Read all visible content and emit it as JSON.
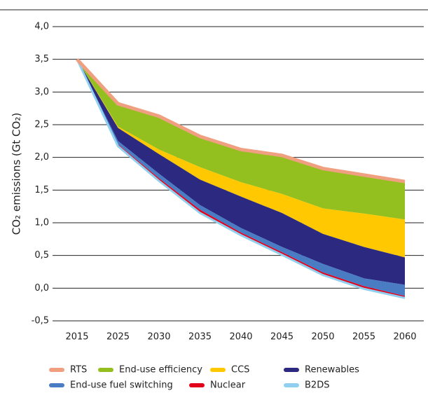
{
  "chart_data": {
    "type": "wedge",
    "y_label": "CO₂ emissions (Gt CO₂)",
    "categories": [
      "2015",
      "2025",
      "2030",
      "2035",
      "2040",
      "2045",
      "2050",
      "2055",
      "2060"
    ],
    "ylim": [
      -0.5,
      4.0
    ],
    "yticks": [
      {
        "value": -0.5,
        "label": "-0,5"
      },
      {
        "value": 0,
        "label": "0,0"
      },
      {
        "value": 0.5,
        "label": "0,5"
      },
      {
        "value": 1.0,
        "label": "1,0"
      },
      {
        "value": 1.5,
        "label": "1,5"
      },
      {
        "value": 2.0,
        "label": "2,0"
      },
      {
        "value": 2.5,
        "label": "2,5"
      },
      {
        "value": 3.0,
        "label": "3,0"
      },
      {
        "value": 3.5,
        "label": "3,5"
      },
      {
        "value": 4.0,
        "label": "4,0"
      }
    ],
    "grid": true,
    "baseline": {
      "name": "RTS",
      "color": "#f0a080",
      "values": [
        3.5,
        2.82,
        2.63,
        2.32,
        2.12,
        2.03,
        1.83,
        1.73,
        1.63
      ]
    },
    "series": [
      {
        "name": "End-use efficiency",
        "color": "#93c01f",
        "values": [
          0,
          0.35,
          0.51,
          0.47,
          0.5,
          0.59,
          0.61,
          0.59,
          0.58
        ]
      },
      {
        "name": "CCS",
        "color": "#ffc800",
        "values": [
          0,
          0.02,
          0.07,
          0.19,
          0.22,
          0.29,
          0.39,
          0.51,
          0.58
        ]
      },
      {
        "name": "Renewables",
        "color": "#2b2a80",
        "values": [
          0,
          0.2,
          0.3,
          0.39,
          0.48,
          0.52,
          0.46,
          0.48,
          0.42
        ]
      },
      {
        "name": "End-use fuel switching",
        "color": "#4a7cc4",
        "values": [
          0,
          0.05,
          0.07,
          0.07,
          0.07,
          0.08,
          0.13,
          0.12,
          0.17
        ]
      },
      {
        "name": "Nuclear",
        "color": "#e3001b",
        "values": [
          0,
          0.03,
          0.04,
          0.05,
          0.04,
          0.04,
          0.04,
          0.04,
          0.03
        ]
      }
    ],
    "target": {
      "name": "B2DS",
      "color": "#8fd0f0"
    }
  }
}
